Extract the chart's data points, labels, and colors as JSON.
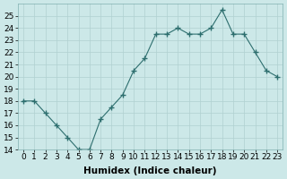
{
  "x": [
    0,
    1,
    2,
    3,
    4,
    5,
    6,
    7,
    8,
    9,
    10,
    11,
    12,
    13,
    14,
    15,
    16,
    17,
    18,
    19,
    20,
    21,
    22,
    23
  ],
  "y": [
    18,
    18,
    17,
    16,
    15,
    14,
    14,
    16.5,
    17.5,
    18.5,
    20.5,
    21.5,
    23.5,
    23.5,
    24,
    23.5,
    23.5,
    24,
    25.5,
    23.5,
    23.5,
    22,
    20.5,
    20
  ],
  "line_color": "#2d6e6e",
  "marker": "+",
  "marker_size": 4,
  "bg_color": "#cce8e8",
  "grid_color": "#b0d0d0",
  "xlabel": "Humidex (Indice chaleur)",
  "xlim": [
    -0.5,
    23.5
  ],
  "ylim": [
    14,
    26
  ],
  "yticks": [
    14,
    15,
    16,
    17,
    18,
    19,
    20,
    21,
    22,
    23,
    24,
    25
  ],
  "xticks": [
    0,
    1,
    2,
    3,
    4,
    5,
    6,
    7,
    8,
    9,
    10,
    11,
    12,
    13,
    14,
    15,
    16,
    17,
    18,
    19,
    20,
    21,
    22,
    23
  ],
  "tick_label_fontsize": 6.5,
  "xlabel_fontsize": 7.5,
  "xlabel_fontweight": "bold"
}
